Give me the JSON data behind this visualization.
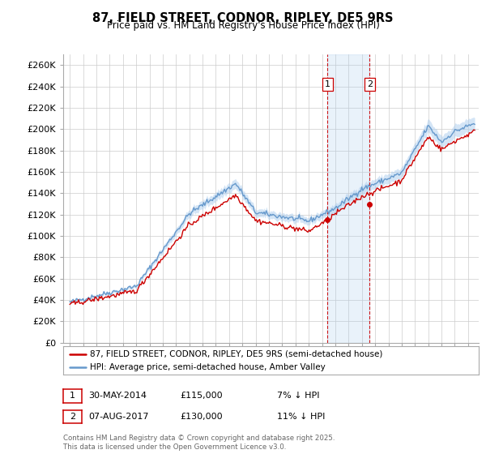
{
  "title": "87, FIELD STREET, CODNOR, RIPLEY, DE5 9RS",
  "subtitle": "Price paid vs. HM Land Registry's House Price Index (HPI)",
  "legend_line1": "87, FIELD STREET, CODNOR, RIPLEY, DE5 9RS (semi-detached house)",
  "legend_line2": "HPI: Average price, semi-detached house, Amber Valley",
  "annotation1_date": "30-MAY-2014",
  "annotation1_price": 115000,
  "annotation1_note": "7% ↓ HPI",
  "annotation2_date": "07-AUG-2017",
  "annotation2_price": 130000,
  "annotation2_note": "11% ↓ HPI",
  "sale1_year": 2014.41,
  "sale2_year": 2017.59,
  "line_color_red": "#cc0000",
  "line_color_blue": "#6699cc",
  "fill_color_blue": "#aaccee",
  "vline_color": "#cc0000",
  "grid_color": "#cccccc",
  "background_color": "#ffffff",
  "footer": "Contains HM Land Registry data © Crown copyright and database right 2025.\nThis data is licensed under the Open Government Licence v3.0.",
  "ylim": [
    0,
    270000
  ],
  "yticks": [
    0,
    20000,
    40000,
    60000,
    80000,
    100000,
    120000,
    140000,
    160000,
    180000,
    200000,
    220000,
    240000,
    260000
  ]
}
